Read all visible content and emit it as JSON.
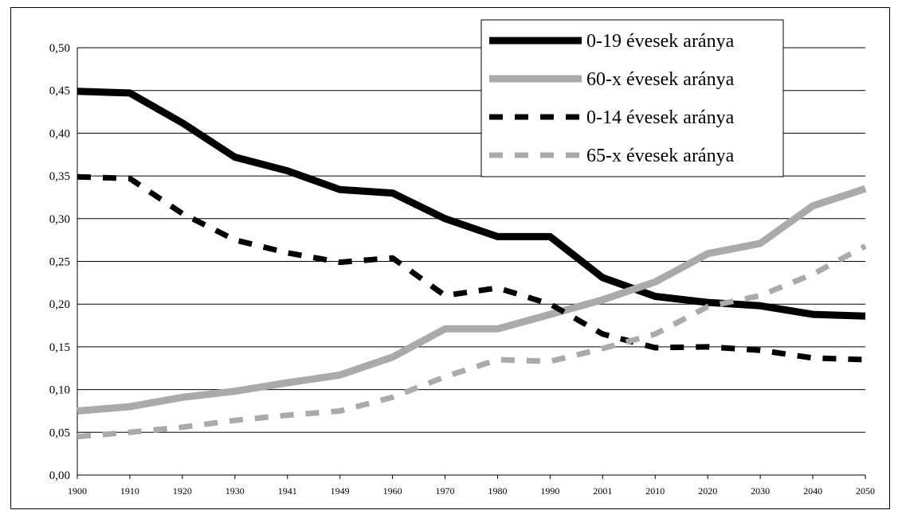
{
  "chart_data": {
    "type": "line",
    "title": "",
    "xlabel": "",
    "ylabel": "",
    "ylim": [
      0,
      0.5
    ],
    "yticks": [
      "0,00",
      "0,05",
      "0,10",
      "0,15",
      "0,20",
      "0,25",
      "0,30",
      "0,35",
      "0,40",
      "0,45",
      "0,50"
    ],
    "categories": [
      "1900",
      "1910",
      "1920",
      "1930",
      "1941",
      "1949",
      "1960",
      "1970",
      "1980",
      "1990",
      "2001",
      "2010",
      "2020",
      "2030",
      "2040",
      "2050"
    ],
    "grid": true,
    "legend_position": "top-right",
    "series": [
      {
        "name": "0-19 évesek aránya",
        "color": "#000000",
        "style": "solid",
        "values": [
          0.449,
          0.447,
          0.412,
          0.372,
          0.356,
          0.334,
          0.33,
          0.3,
          0.279,
          0.279,
          0.231,
          0.209,
          0.202,
          0.198,
          0.188,
          0.186
        ]
      },
      {
        "name": "60-x évesek aránya",
        "color": "#aaaaaa",
        "style": "solid",
        "values": [
          0.075,
          0.08,
          0.091,
          0.098,
          0.108,
          0.117,
          0.138,
          0.171,
          0.171,
          0.188,
          0.205,
          0.226,
          0.259,
          0.271,
          0.315,
          0.335
        ]
      },
      {
        "name": "0-14 évesek aránya",
        "color": "#000000",
        "style": "dashed",
        "values": [
          0.349,
          0.347,
          0.306,
          0.275,
          0.26,
          0.249,
          0.254,
          0.21,
          0.219,
          0.2,
          0.165,
          0.149,
          0.15,
          0.146,
          0.137,
          0.135
        ]
      },
      {
        "name": "65-x évesek aránya",
        "color": "#aaaaaa",
        "style": "dashed",
        "values": [
          0.045,
          0.05,
          0.056,
          0.064,
          0.07,
          0.075,
          0.091,
          0.115,
          0.135,
          0.133,
          0.148,
          0.165,
          0.197,
          0.21,
          0.235,
          0.268
        ]
      }
    ]
  }
}
